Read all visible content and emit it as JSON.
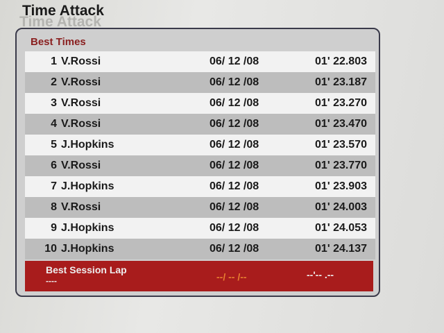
{
  "title": "Time Attack",
  "section_title": "Best Times",
  "records": [
    {
      "rank": "1",
      "name": "V.Rossi",
      "date": "06/ 12 /08",
      "time": "01' 22.803"
    },
    {
      "rank": "2",
      "name": "V.Rossi",
      "date": "06/ 12 /08",
      "time": "01' 23.187"
    },
    {
      "rank": "3",
      "name": "V.Rossi",
      "date": "06/ 12 /08",
      "time": "01' 23.270"
    },
    {
      "rank": "4",
      "name": "V.Rossi",
      "date": "06/ 12 /08",
      "time": "01' 23.470"
    },
    {
      "rank": "5",
      "name": "J.Hopkins",
      "date": "06/ 12 /08",
      "time": "01' 23.570"
    },
    {
      "rank": "6",
      "name": "V.Rossi",
      "date": "06/ 12 /08",
      "time": "01' 23.770"
    },
    {
      "rank": "7",
      "name": "J.Hopkins",
      "date": "06/ 12 /08",
      "time": "01' 23.903"
    },
    {
      "rank": "8",
      "name": "V.Rossi",
      "date": "06/ 12 /08",
      "time": "01' 24.003"
    },
    {
      "rank": "9",
      "name": "J.Hopkins",
      "date": "06/ 12 /08",
      "time": "01' 24.053"
    },
    {
      "rank": "10",
      "name": "J.Hopkins",
      "date": "06/ 12 /08",
      "time": "01' 24.137"
    }
  ],
  "session": {
    "label": "Best Session Lap",
    "name": "----",
    "date": "--/ -- /--",
    "time": "--'-- .--"
  },
  "colors": {
    "accent_red": "#a81c1c",
    "header_text": "#8a2020",
    "session_date": "#e88030"
  }
}
